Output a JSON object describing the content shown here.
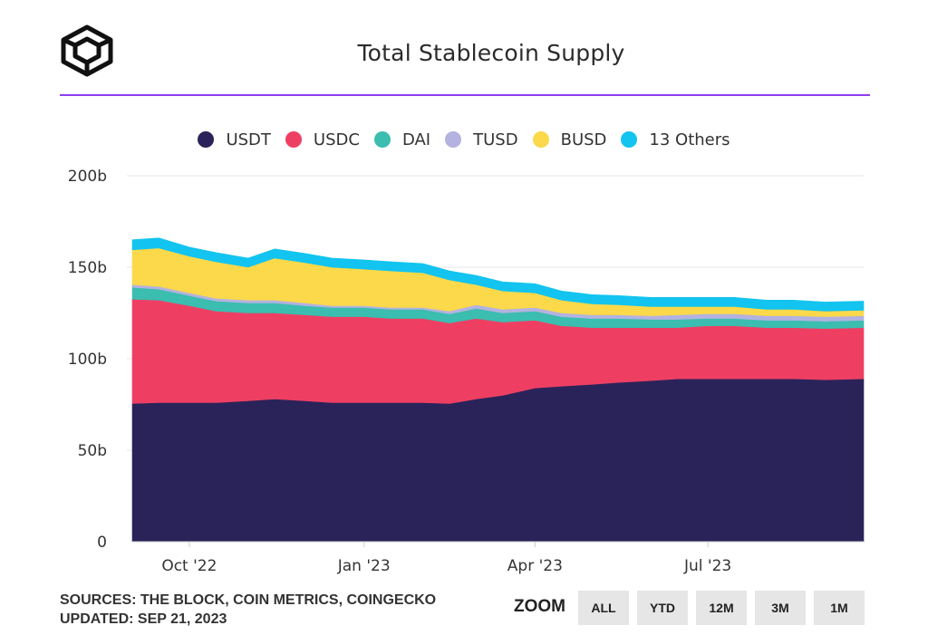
{
  "title": "Total Stablecoin Supply",
  "logo_icon": "cube-outline-icon",
  "accent_color": "#8f3ef0",
  "footer": {
    "sources": "SOURCES: THE BLOCK, COIN METRICS, COINGECKO",
    "updated": "UPDATED: SEP 21, 2023"
  },
  "zoom": {
    "label": "ZOOM",
    "buttons": [
      "ALL",
      "YTD",
      "12M",
      "3M",
      "1M"
    ]
  },
  "chart_data": {
    "type": "area",
    "stacked": true,
    "title": "Total Stablecoin Supply",
    "xlabel": "",
    "ylabel": "",
    "ylim": [
      0,
      200
    ],
    "y_ticks": [
      "0",
      "50b",
      "100b",
      "150b",
      "200b"
    ],
    "y_tick_values": [
      0,
      50,
      100,
      150,
      200
    ],
    "x_range": [
      "2022-09-01",
      "2023-09-21"
    ],
    "x_ticks": [
      {
        "label": "Oct '22",
        "date": "2022-10-01"
      },
      {
        "label": "Jan '23",
        "date": "2023-01-01"
      },
      {
        "label": "Apr '23",
        "date": "2023-04-01"
      },
      {
        "label": "Jul '23",
        "date": "2023-07-01"
      }
    ],
    "grid": true,
    "legend_position": "top-center",
    "x": [
      "2022-09-01",
      "2022-09-15",
      "2022-10-01",
      "2022-10-15",
      "2022-11-01",
      "2022-11-15",
      "2022-12-01",
      "2022-12-15",
      "2023-01-01",
      "2023-01-15",
      "2023-02-01",
      "2023-02-15",
      "2023-03-01",
      "2023-03-15",
      "2023-04-01",
      "2023-04-15",
      "2023-05-01",
      "2023-05-15",
      "2023-06-01",
      "2023-06-15",
      "2023-07-01",
      "2023-07-15",
      "2023-08-01",
      "2023-08-15",
      "2023-09-01",
      "2023-09-21"
    ],
    "series": [
      {
        "name": "USDT",
        "color": "#2a2359",
        "values": [
          75.5,
          76,
          76,
          76,
          77,
          78,
          77,
          76,
          76,
          76,
          76,
          75.5,
          78,
          80,
          84,
          85,
          86,
          87,
          88,
          89,
          89,
          89,
          89,
          89,
          88.5,
          89
        ]
      },
      {
        "name": "USDC",
        "color": "#ee3f63",
        "values": [
          57,
          56,
          53,
          50,
          48,
          47,
          47,
          47,
          47,
          46,
          46,
          44,
          44,
          40,
          37,
          33,
          31,
          30,
          29,
          28,
          29,
          29,
          28,
          28,
          28,
          28
        ]
      },
      {
        "name": "DAI",
        "color": "#3bbdb0",
        "values": [
          6.5,
          6,
          5.5,
          5.5,
          5.5,
          5.5,
          5,
          5,
          5,
          5,
          5,
          5,
          5.5,
          5,
          5,
          5,
          5,
          5,
          4.5,
          4.5,
          4,
          4,
          4,
          4,
          4,
          4
        ]
      },
      {
        "name": "TUSD",
        "color": "#b3b2e0",
        "values": [
          1.5,
          1.5,
          1.5,
          1.5,
          1.5,
          1.5,
          1.5,
          1,
          1,
          1,
          1,
          1.5,
          2,
          2,
          2,
          2,
          2,
          2,
          2,
          2.5,
          2.5,
          2.5,
          2.5,
          2.5,
          2.5,
          2.5
        ]
      },
      {
        "name": "BUSD",
        "color": "#fbd94a",
        "values": [
          19,
          21,
          20,
          20,
          18,
          23,
          22,
          21,
          20,
          20,
          19,
          17,
          11,
          10,
          8,
          7,
          6,
          5.5,
          5,
          4.5,
          4,
          4,
          3.5,
          3.5,
          3,
          3
        ]
      },
      {
        "name": "13 Others",
        "color": "#12c4ef",
        "values": [
          5.5,
          5.5,
          5,
          5,
          5,
          5,
          5,
          5,
          5,
          5,
          5,
          5,
          5,
          5,
          5,
          5,
          5,
          5,
          5,
          5,
          5,
          5,
          5,
          5,
          5,
          5
        ]
      }
    ]
  }
}
